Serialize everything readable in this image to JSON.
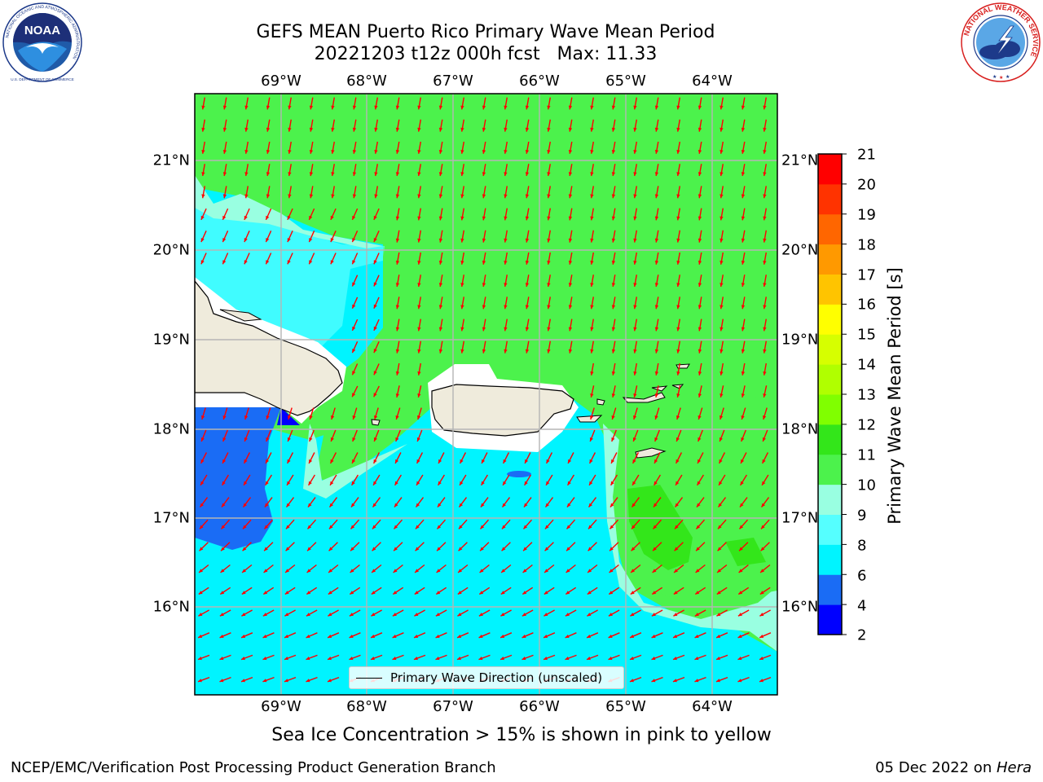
{
  "header": {
    "title_line1": "GEFS MEAN Puerto Rico Primary Wave Mean Period",
    "title_line2": "20221203 t12z 000h fcst   Max: 11.33"
  },
  "logos": {
    "noaa": {
      "text": "NOAA",
      "ring_text": "NATIONAL OCEANIC AND ATMOSPHERIC ADMINISTRATION",
      "bottom_text": "U.S. DEPARTMENT OF COMMERCE"
    },
    "nws": {
      "ring_text": "NATIONAL WEATHER SERVICE"
    }
  },
  "map": {
    "longitude_labels": [
      "69°W",
      "68°W",
      "67°W",
      "66°W",
      "65°W",
      "64°W"
    ],
    "latitude_labels": [
      "21°N",
      "20°N",
      "19°N",
      "18°N",
      "17°N",
      "16°N"
    ],
    "arrow_color": "#ff0000",
    "land_color": "#efebdc",
    "legend_label": "Primary Wave Direction (unscaled)"
  },
  "colorbar": {
    "label": "Primary Wave Mean Period [s]",
    "ticks": [
      "21",
      "20",
      "19",
      "18",
      "17",
      "16",
      "15",
      "14",
      "13",
      "12",
      "11",
      "10",
      "9",
      "8",
      "6",
      "4",
      "2"
    ],
    "levels": [
      {
        "from": 2,
        "to": 4,
        "color": "#0000ff"
      },
      {
        "from": 4,
        "to": 6,
        "color": "#1a6cf5"
      },
      {
        "from": 6,
        "to": 8,
        "color": "#00f4ff"
      },
      {
        "from": 8,
        "to": 9,
        "color": "#55ffff"
      },
      {
        "from": 9,
        "to": 10,
        "color": "#99ffe1"
      },
      {
        "from": 10,
        "to": 11,
        "color": "#4cf24c"
      },
      {
        "from": 11,
        "to": 12,
        "color": "#33e61a"
      },
      {
        "from": 12,
        "to": 13,
        "color": "#80ff00"
      },
      {
        "from": 13,
        "to": 14,
        "color": "#b0ff00"
      },
      {
        "from": 14,
        "to": 15,
        "color": "#d6ff00"
      },
      {
        "from": 15,
        "to": 16,
        "color": "#ffff00"
      },
      {
        "from": 16,
        "to": 17,
        "color": "#ffc400"
      },
      {
        "from": 17,
        "to": 18,
        "color": "#ff9900"
      },
      {
        "from": 18,
        "to": 19,
        "color": "#ff6600"
      },
      {
        "from": 19,
        "to": 20,
        "color": "#ff3300"
      },
      {
        "from": 20,
        "to": 21,
        "color": "#ff0000"
      }
    ]
  },
  "notes": {
    "sea_ice": "Sea Ice Concentration > 15% is shown in pink to yellow"
  },
  "footer": {
    "left": "NCEP/EMC/Verification Post Processing Product Generation Branch",
    "right_prefix": "05 Dec 2022 on ",
    "right_machine": "Hera"
  }
}
